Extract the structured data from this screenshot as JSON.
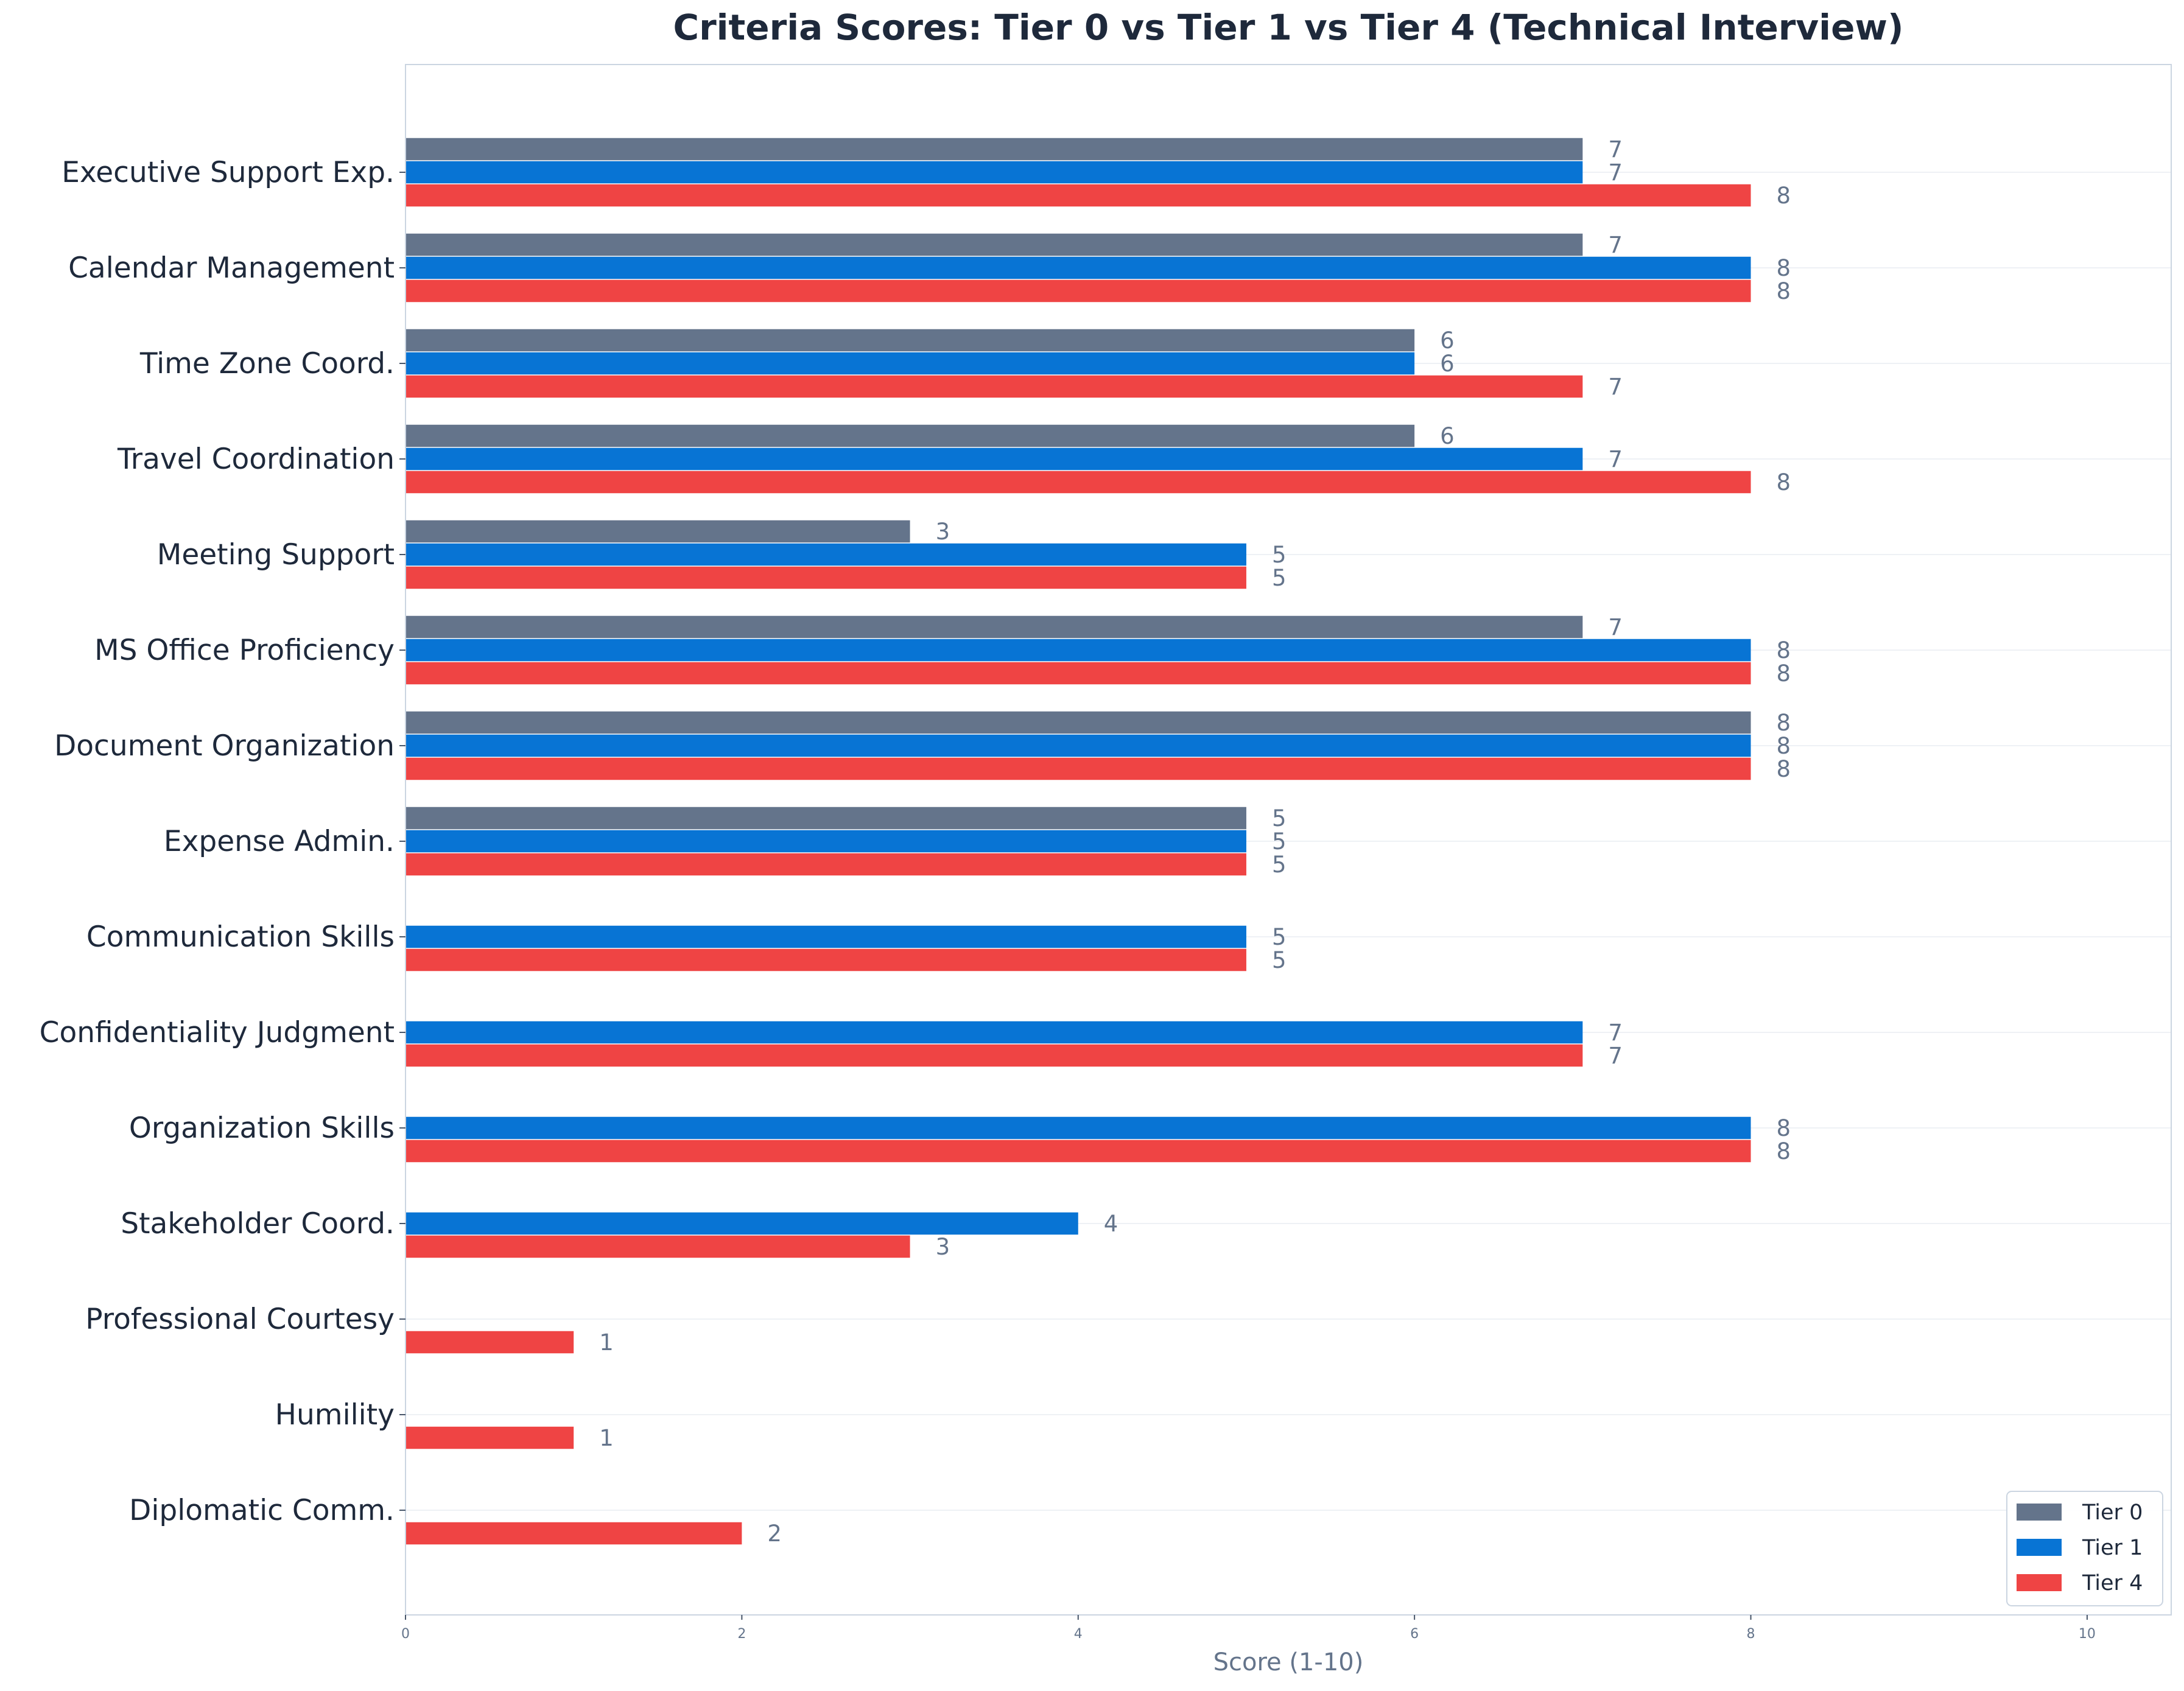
{
  "chart_data": {
    "type": "bar",
    "orientation": "horizontal",
    "title": "Criteria Scores: Tier 0 vs Tier 1 vs Tier 4 (Technical Interview)",
    "xlabel": "Score (1-10)",
    "ylabel": "",
    "xlim": [
      0,
      10.5
    ],
    "x_ticks": [
      0,
      2,
      4,
      6,
      8,
      10
    ],
    "grid": "horizontal lines at each category",
    "legend_position": "bottom-right",
    "categories": [
      "Executive Support Exp.",
      "Calendar Management",
      "Time Zone Coord.",
      "Travel Coordination",
      "Meeting Support",
      "MS Office Proficiency",
      "Document Organization",
      "Expense Admin.",
      "Communication Skills",
      "Confidentiality Judgment",
      "Organization Skills",
      "Stakeholder Coord.",
      "Professional Courtesy",
      "Humility",
      "Diplomatic Comm."
    ],
    "series": [
      {
        "name": "Tier 0",
        "color": "#64748b",
        "values": [
          7,
          7,
          6,
          6,
          3,
          7,
          8,
          5,
          null,
          null,
          null,
          null,
          null,
          null,
          null
        ]
      },
      {
        "name": "Tier 1",
        "color": "#0874d4",
        "values": [
          7,
          8,
          6,
          7,
          5,
          8,
          8,
          5,
          5,
          7,
          8,
          4,
          null,
          null,
          null
        ]
      },
      {
        "name": "Tier 4",
        "color": "#ef4444",
        "values": [
          8,
          8,
          7,
          8,
          5,
          8,
          8,
          5,
          5,
          7,
          8,
          3,
          1,
          1,
          2
        ]
      }
    ]
  }
}
